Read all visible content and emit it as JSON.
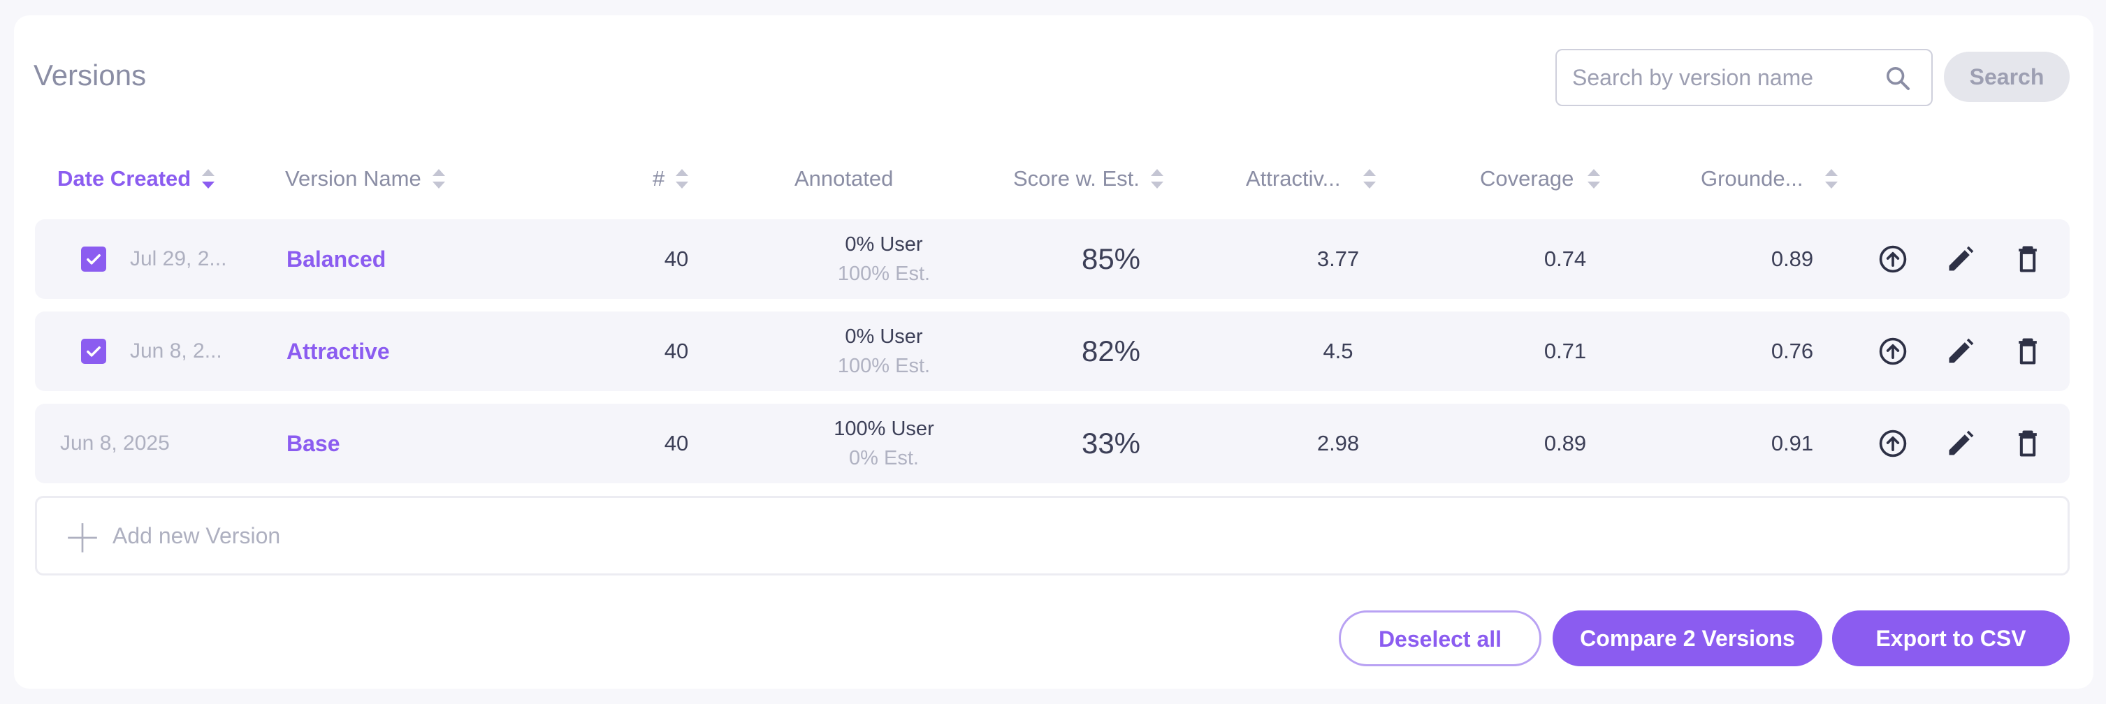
{
  "page": {
    "title": "Versions"
  },
  "search": {
    "placeholder": "Search by version name",
    "button_label": "Search"
  },
  "table": {
    "columns": [
      {
        "key": "date",
        "label": "Date Created",
        "sort": "desc",
        "active": true
      },
      {
        "key": "name",
        "label": "Version Name",
        "sort": "none"
      },
      {
        "key": "count",
        "label": "#",
        "sort": "none"
      },
      {
        "key": "annotated",
        "label": "Annotated",
        "sort": null
      },
      {
        "key": "score",
        "label": "Score w. Est.",
        "sort": "none"
      },
      {
        "key": "attractive",
        "label": "Attractiv...",
        "sort": "none"
      },
      {
        "key": "coverage",
        "label": "Coverage",
        "sort": "none"
      },
      {
        "key": "grounded",
        "label": "Grounde...",
        "sort": "none"
      }
    ],
    "rows": [
      {
        "selected": true,
        "date": "Jul 29, 2...",
        "name": "Balanced",
        "count": "40",
        "annotated_user": "0% User",
        "annotated_est": "100% Est.",
        "score": "85%",
        "attractive": "3.77",
        "coverage": "0.74",
        "grounded": "0.89"
      },
      {
        "selected": true,
        "date": "Jun 8, 2...",
        "name": "Attractive",
        "count": "40",
        "annotated_user": "0% User",
        "annotated_est": "100% Est.",
        "score": "82%",
        "attractive": "4.5",
        "coverage": "0.71",
        "grounded": "0.76"
      },
      {
        "selected": false,
        "date": "Jun 8, 2025",
        "name": "Base",
        "count": "40",
        "annotated_user": "100% User",
        "annotated_est": "0% Est.",
        "score": "33%",
        "attractive": "2.98",
        "coverage": "0.89",
        "grounded": "0.91"
      }
    ],
    "row_actions": [
      "upload-icon",
      "edit-icon",
      "delete-icon"
    ],
    "add_label": "Add new Version"
  },
  "footer": {
    "deselect_label": "Deselect all",
    "compare_label": "Compare 2 Versions",
    "export_label": "Export to CSV"
  },
  "colors": {
    "accent": "#8b5cf0",
    "text": "#3c3f57",
    "muted": "#8a8da4",
    "row_bg": "#f5f5fa"
  }
}
